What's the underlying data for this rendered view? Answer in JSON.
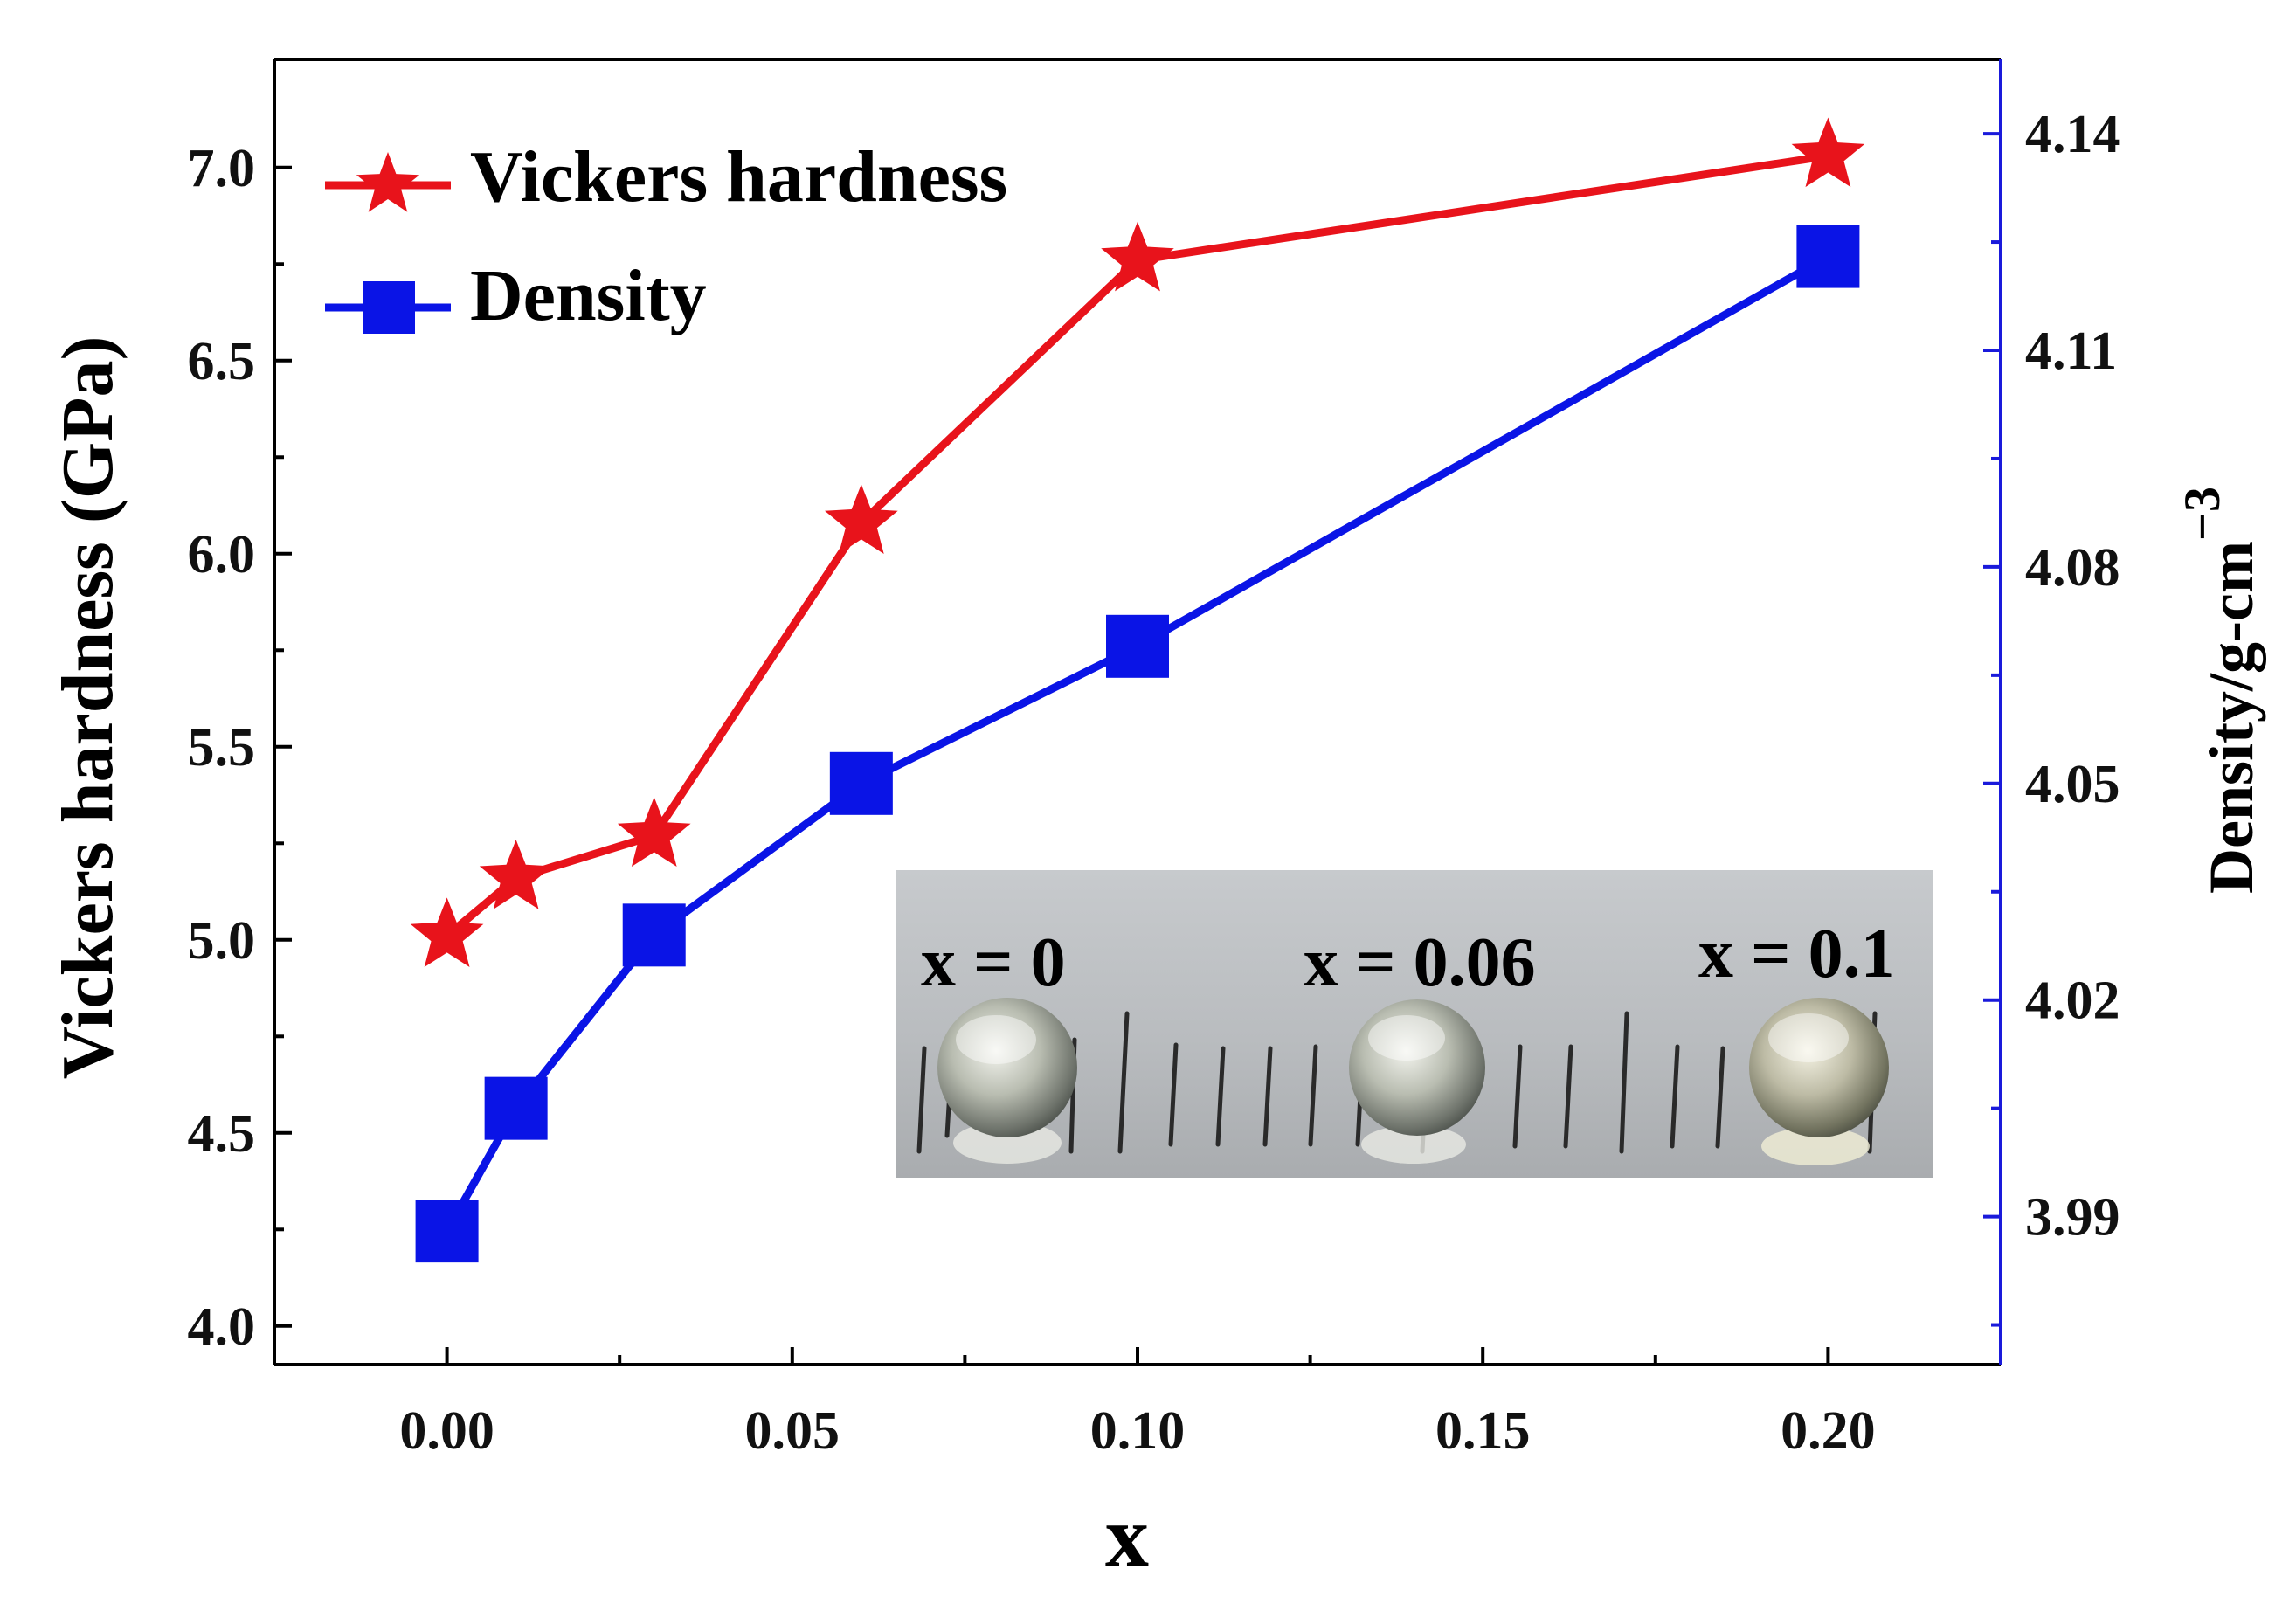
{
  "chart_data": {
    "type": "line",
    "xlabel": "x",
    "ylabel_left": "Vickers hardness (GPa)",
    "ylabel_right": "Density/g-cm",
    "ylabel_right_superscript": "−3",
    "x_ticks": [
      "0.00",
      "0.05",
      "0.10",
      "0.15",
      "0.20"
    ],
    "y_left_ticks": [
      "4.0",
      "4.5",
      "5.0",
      "5.5",
      "6.0",
      "6.5",
      "7.0"
    ],
    "y_right_ticks": [
      "3.99",
      "4.02",
      "4.05",
      "4.08",
      "4.11",
      "4.14"
    ],
    "xlim": [
      -0.025,
      0.225
    ],
    "ylim_left": [
      3.9,
      7.28
    ],
    "ylim_right": [
      3.9695,
      4.1503
    ],
    "x_tick_values": [
      0.0,
      0.05,
      0.1,
      0.15,
      0.2
    ],
    "x_minor_values": [
      0.025,
      0.075,
      0.125,
      0.175
    ],
    "y_left_tick_values": [
      4.0,
      4.5,
      5.0,
      5.5,
      6.0,
      6.5,
      7.0
    ],
    "y_left_minor_values": [
      4.25,
      4.75,
      5.25,
      5.75,
      6.25,
      6.75
    ],
    "y_right_tick_values": [
      3.99,
      4.02,
      4.05,
      4.08,
      4.11,
      4.14
    ],
    "y_right_minor_values": [
      3.975,
      4.005,
      4.035,
      4.065,
      4.095,
      4.125
    ],
    "series": [
      {
        "name": "Vickers hardness",
        "axis": "left",
        "marker": "star",
        "color": "#e8131b",
        "x": [
          0.0,
          0.01,
          0.03,
          0.06,
          0.1,
          0.2
        ],
        "y": [
          5.01,
          5.16,
          5.27,
          6.08,
          6.76,
          7.03
        ]
      },
      {
        "name": "Density",
        "axis": "right",
        "marker": "square",
        "color": "#0a14e6",
        "x": [
          0.0,
          0.01,
          0.03,
          0.06,
          0.1,
          0.2
        ],
        "y": [
          3.988,
          4.005,
          4.029,
          4.05,
          4.069,
          4.123
        ]
      }
    ],
    "legend": [
      "Vickers hardness",
      "Density"
    ],
    "legend_position": "top-left",
    "inset": {
      "description": "photo of three glass spheres on a ruler",
      "labels": [
        "x = 0",
        "x = 0.06",
        "x = 0.1"
      ]
    },
    "colors": {
      "right_axis": "#1a1adb",
      "frame": "#000000"
    }
  }
}
